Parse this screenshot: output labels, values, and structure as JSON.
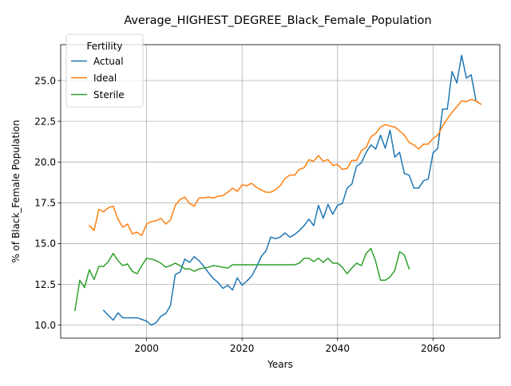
{
  "chart_data": {
    "type": "line",
    "title": "Average_HIGHEST_DEGREE_Black_Female_Population",
    "xlabel": "Years",
    "ylabel": "% of Black_Female Population",
    "xlim": [
      1982,
      2074
    ],
    "ylim": [
      9.2,
      27.2
    ],
    "x_ticks": [
      2000,
      2020,
      2040,
      2060
    ],
    "y_ticks": [
      10.0,
      12.5,
      15.0,
      17.5,
      20.0,
      22.5,
      25.0
    ],
    "x_tick_labels": [
      "2000",
      "2020",
      "2040",
      "2060"
    ],
    "y_tick_labels": [
      "10.0",
      "12.5",
      "15.0",
      "17.5",
      "20.0",
      "22.5",
      "25.0"
    ],
    "grid": true,
    "legend": {
      "title": "Fertility",
      "placement": "top-left"
    },
    "series": [
      {
        "name": "Actual",
        "color": "#1f77b4",
        "x": [
          1991,
          1992,
          1993,
          1994,
          1995,
          1996,
          1997,
          1998,
          1999,
          2000,
          2001,
          2002,
          2003,
          2004,
          2005,
          2006,
          2007,
          2008,
          2009,
          2010,
          2011,
          2012,
          2013,
          2014,
          2015,
          2016,
          2017,
          2018,
          2019,
          2020,
          2021,
          2022,
          2023,
          2024,
          2025,
          2026,
          2027,
          2028,
          2029,
          2030,
          2031,
          2032,
          2033,
          2034,
          2035,
          2036,
          2037,
          2038,
          2039,
          2040,
          2041,
          2042,
          2043,
          2044,
          2045,
          2046,
          2047,
          2048,
          2049,
          2050,
          2051,
          2052,
          2053,
          2054,
          2055,
          2056,
          2057,
          2058,
          2059,
          2060,
          2061,
          2062,
          2063,
          2064,
          2065,
          2066,
          2067,
          2068,
          2069,
          2070
        ],
        "values": [
          10.9,
          10.6,
          10.3,
          10.75,
          10.45,
          10.45,
          10.45,
          10.45,
          10.35,
          10.25,
          10.0,
          10.15,
          10.55,
          10.7,
          11.2,
          13.1,
          13.25,
          14.05,
          13.85,
          14.2,
          13.95,
          13.6,
          13.2,
          12.85,
          12.6,
          12.25,
          12.45,
          12.15,
          12.9,
          12.45,
          12.7,
          13.0,
          13.55,
          14.2,
          14.55,
          15.4,
          15.3,
          15.4,
          15.65,
          15.4,
          15.55,
          15.8,
          16.1,
          16.5,
          16.1,
          17.35,
          16.55,
          17.4,
          16.8,
          17.35,
          17.45,
          18.4,
          18.65,
          19.75,
          19.95,
          20.6,
          21.05,
          20.8,
          21.65,
          20.85,
          21.95,
          20.3,
          20.6,
          19.3,
          19.2,
          18.4,
          18.4,
          18.85,
          18.95,
          20.55,
          20.85,
          23.25,
          23.25,
          25.55,
          24.85,
          26.55,
          25.15,
          25.35,
          23.75,
          23.55
        ]
      },
      {
        "name": "Ideal",
        "color": "#ff7f0e",
        "x": [
          1988,
          1989,
          1990,
          1991,
          1992,
          1993,
          1994,
          1995,
          1996,
          1997,
          1998,
          1999,
          2000,
          2001,
          2002,
          2003,
          2004,
          2005,
          2006,
          2007,
          2008,
          2009,
          2010,
          2011,
          2012,
          2013,
          2014,
          2015,
          2016,
          2017,
          2018,
          2019,
          2020,
          2021,
          2022,
          2023,
          2024,
          2025,
          2026,
          2027,
          2028,
          2029,
          2030,
          2031,
          2032,
          2033,
          2034,
          2035,
          2036,
          2037,
          2038,
          2039,
          2040,
          2041,
          2042,
          2043,
          2044,
          2045,
          2046,
          2047,
          2048,
          2049,
          2050,
          2051,
          2052,
          2053,
          2054,
          2055,
          2056,
          2057,
          2058,
          2059,
          2060,
          2061,
          2062,
          2063,
          2064,
          2065,
          2066,
          2067,
          2068,
          2069,
          2070
        ],
        "values": [
          16.1,
          15.8,
          17.1,
          16.95,
          17.2,
          17.3,
          16.5,
          16.0,
          16.2,
          15.6,
          15.7,
          15.5,
          16.2,
          16.35,
          16.4,
          16.55,
          16.2,
          16.45,
          17.35,
          17.7,
          17.85,
          17.45,
          17.3,
          17.8,
          17.8,
          17.85,
          17.8,
          17.9,
          17.95,
          18.15,
          18.4,
          18.2,
          18.6,
          18.55,
          18.7,
          18.45,
          18.3,
          18.15,
          18.15,
          18.3,
          18.55,
          19.0,
          19.2,
          19.2,
          19.55,
          19.65,
          20.15,
          20.05,
          20.4,
          20.05,
          20.15,
          19.8,
          19.85,
          19.55,
          19.6,
          20.1,
          20.1,
          20.7,
          20.9,
          21.55,
          21.75,
          22.15,
          22.3,
          22.2,
          22.15,
          21.9,
          21.65,
          21.2,
          21.05,
          20.8,
          21.1,
          21.1,
          21.45,
          21.65,
          22.2,
          22.65,
          23.05,
          23.4,
          23.75,
          23.7,
          23.85,
          23.75,
          23.55
        ]
      },
      {
        "name": "Sterile",
        "color": "#2ca02c",
        "x": [
          1985,
          1986,
          1987,
          1988,
          1989,
          1990,
          1991,
          1992,
          1993,
          1994,
          1995,
          1996,
          1997,
          1998,
          1999,
          2000,
          2001,
          2002,
          2003,
          2004,
          2005,
          2006,
          2007,
          2008,
          2009,
          2010,
          2011,
          2012,
          2013,
          2014,
          2015,
          2016,
          2017,
          2018,
          2019,
          2020,
          2021,
          2022,
          2023,
          2024,
          2025,
          2026,
          2027,
          2028,
          2029,
          2030,
          2031,
          2032,
          2033,
          2034,
          2035,
          2036,
          2037,
          2038,
          2039,
          2040,
          2041,
          2042,
          2043,
          2044,
          2045,
          2046,
          2047,
          2048,
          2049,
          2050,
          2051,
          2052,
          2053,
          2054,
          2055
        ],
        "values": [
          10.9,
          12.75,
          12.3,
          13.4,
          12.8,
          13.6,
          13.6,
          13.9,
          14.4,
          13.95,
          13.65,
          13.75,
          13.3,
          13.15,
          13.65,
          14.1,
          14.05,
          13.95,
          13.8,
          13.55,
          13.65,
          13.8,
          13.65,
          13.45,
          13.45,
          13.3,
          13.45,
          13.5,
          13.55,
          13.65,
          13.6,
          13.55,
          13.5,
          13.7,
          13.7,
          13.7,
          13.7,
          13.7,
          13.7,
          13.7,
          13.7,
          13.7,
          13.7,
          13.7,
          13.7,
          13.7,
          13.7,
          13.8,
          14.1,
          14.1,
          13.9,
          14.1,
          13.85,
          14.1,
          13.8,
          13.8,
          13.55,
          13.15,
          13.5,
          13.8,
          13.65,
          14.4,
          14.7,
          13.9,
          12.75,
          12.75,
          12.95,
          13.35,
          14.5,
          14.3,
          13.45
        ]
      }
    ]
  }
}
